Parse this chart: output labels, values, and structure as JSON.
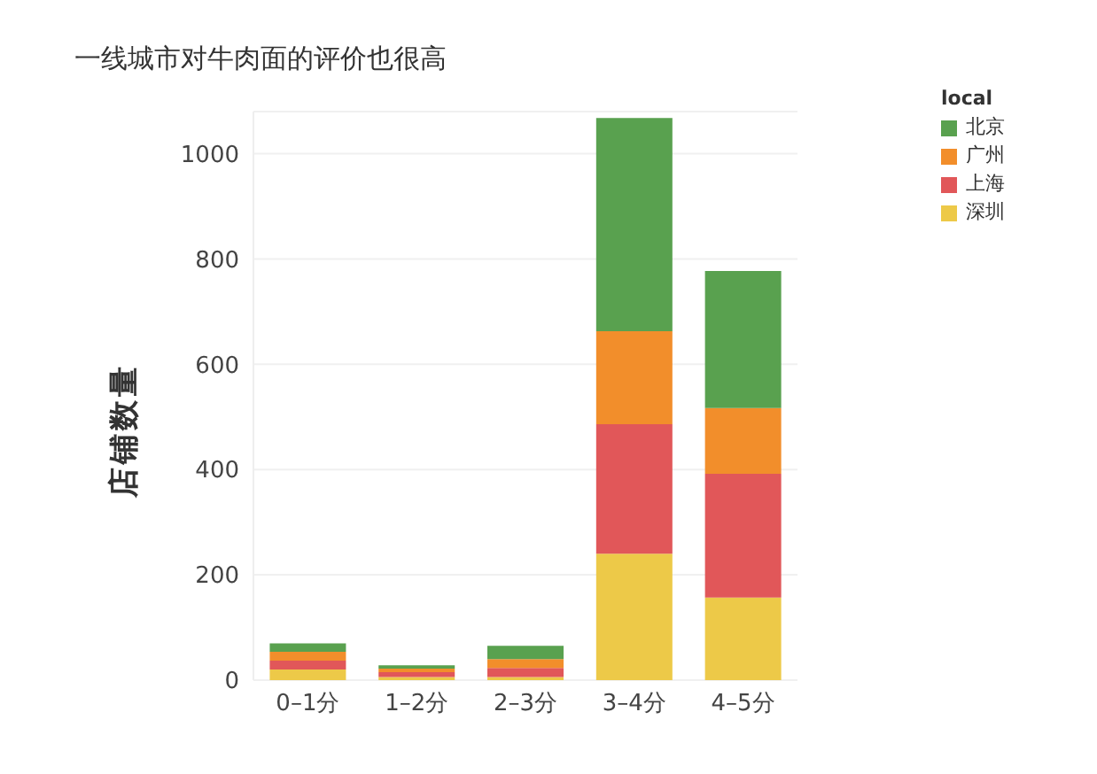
{
  "chart_data": {
    "type": "bar",
    "title": "一线城市对牛肉面的评价也很高",
    "ylabel": "店铺数量",
    "legend_title": "local",
    "categories": [
      "0–1分",
      "1–2分",
      "2–3分",
      "3–4分",
      "4–5分"
    ],
    "stacked": true,
    "series": [
      {
        "name": "深圳",
        "color": "#edc948",
        "values": [
          20,
          6,
          6,
          240,
          157
        ]
      },
      {
        "name": "上海",
        "color": "#e15759",
        "values": [
          17,
          9,
          17,
          246,
          235
        ]
      },
      {
        "name": "广州",
        "color": "#f28e2b",
        "values": [
          17,
          7,
          17,
          177,
          125
        ]
      },
      {
        "name": "北京",
        "color": "#59a14f",
        "values": [
          16,
          6,
          25,
          405,
          260
        ]
      }
    ],
    "ylim": [
      0,
      1080
    ],
    "yticks": [
      0,
      200,
      400,
      600,
      800,
      1000
    ],
    "grid": "y",
    "legend": "top right"
  }
}
